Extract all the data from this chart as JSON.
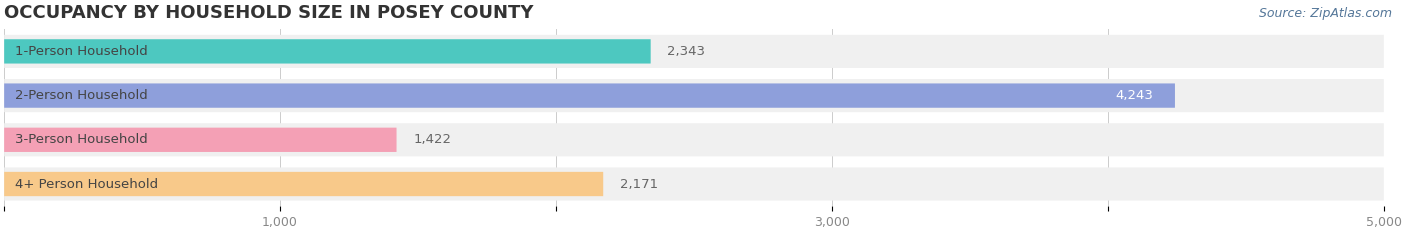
{
  "title": "OCCUPANCY BY HOUSEHOLD SIZE IN POSEY COUNTY",
  "source": "Source: ZipAtlas.com",
  "categories": [
    "1-Person Household",
    "2-Person Household",
    "3-Person Household",
    "4+ Person Household"
  ],
  "values": [
    2343,
    4243,
    1422,
    2171
  ],
  "bar_colors": [
    "#4DC8C0",
    "#8E9FDB",
    "#F4A0B5",
    "#F8C98A"
  ],
  "background_color": "#FFFFFF",
  "row_bg_color": "#F0F0F0",
  "xlim": [
    0,
    5000
  ],
  "xticks": [
    0,
    1000,
    2000,
    3000,
    4000,
    5000
  ],
  "xtick_labels": [
    "",
    "1,000",
    "",
    "3,000",
    "",
    "5,000"
  ],
  "label_fontsize": 9.5,
  "value_fontsize": 9.5,
  "title_fontsize": 13,
  "source_fontsize": 9,
  "value_inside_index": 1,
  "value_inside_color": "white",
  "value_outside_color": "#666666"
}
